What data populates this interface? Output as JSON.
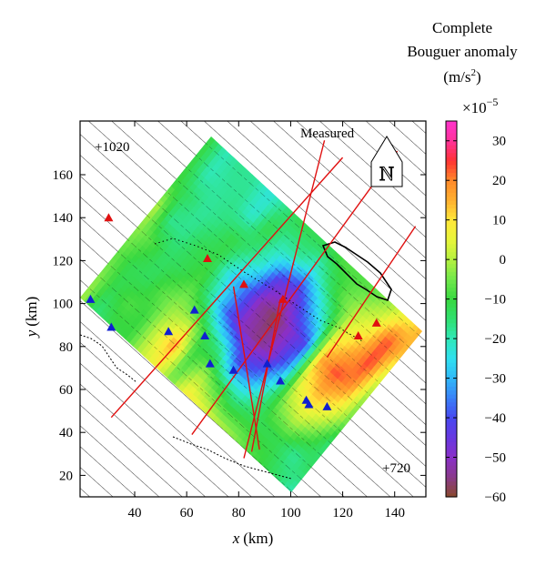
{
  "chart_data": {
    "type": "heatmap",
    "xlabel_var": "x",
    "xlabel_unit": "(km)",
    "ylabel_var": "y",
    "ylabel_unit": "(km)",
    "xticks": [
      40,
      60,
      80,
      100,
      120,
      140
    ],
    "yticks": [
      20,
      40,
      60,
      80,
      100,
      120,
      140,
      160
    ],
    "xlim": [
      19,
      152
    ],
    "ylim": [
      10,
      185
    ],
    "colorbar": {
      "title_line1": "Complete",
      "title_line2": "Bouguer anomaly",
      "title_unit": "(m/s",
      "title_unit_sup": "2",
      "title_unit_end": ")",
      "scale_base": "×10",
      "scale_exp": "−5",
      "range": [
        -60,
        35
      ],
      "ticks": [
        "30",
        "20",
        "10",
        "0",
        "−10",
        "−20",
        "−30",
        "−40",
        "−50",
        "−60"
      ],
      "tick_values": [
        30,
        20,
        10,
        0,
        -10,
        -20,
        -30,
        -40,
        -50,
        -60
      ],
      "stops": [
        {
          "v": 35,
          "c": "#ff33cc"
        },
        {
          "v": 30,
          "c": "#ff3399"
        },
        {
          "v": 25,
          "c": "#ff3333"
        },
        {
          "v": 20,
          "c": "#ff8a2a"
        },
        {
          "v": 15,
          "c": "#ffb030"
        },
        {
          "v": 10,
          "c": "#ffe83a"
        },
        {
          "v": 5,
          "c": "#e8f53a"
        },
        {
          "v": 0,
          "c": "#b4f040"
        },
        {
          "v": -5,
          "c": "#70e84a"
        },
        {
          "v": -10,
          "c": "#38d840"
        },
        {
          "v": -15,
          "c": "#30e070"
        },
        {
          "v": -20,
          "c": "#30e8b8"
        },
        {
          "v": -25,
          "c": "#30e0f0"
        },
        {
          "v": -30,
          "c": "#30b8f8"
        },
        {
          "v": -35,
          "c": "#3a80f8"
        },
        {
          "v": -40,
          "c": "#4848f0"
        },
        {
          "v": -45,
          "c": "#6838e0"
        },
        {
          "v": -50,
          "c": "#8a30c8"
        },
        {
          "v": -55,
          "c": "#8a3a8a"
        },
        {
          "v": -60,
          "c": "#8a4a2a"
        }
      ]
    },
    "grid_values": [
      [
        -20,
        -13,
        -16,
        -6,
        -4,
        3,
        13,
        15
      ],
      [
        -14,
        -18,
        -5,
        7,
        19,
        25,
        24,
        7
      ],
      [
        -10,
        -12,
        2,
        14,
        24,
        15,
        6,
        -2
      ],
      [
        -7,
        -12,
        -3,
        6,
        15,
        6,
        0,
        -7
      ],
      [
        -2,
        -13,
        -20,
        -33,
        -40,
        -19,
        -6,
        -8
      ],
      [
        1,
        -16,
        -35,
        -50,
        -49,
        -33,
        -15,
        -7
      ],
      [
        5,
        -10,
        -40,
        -55,
        -58,
        -48,
        -24,
        -11
      ],
      [
        9,
        -2,
        -20,
        -50,
        -52,
        -44,
        -18,
        -12
      ],
      [
        -5,
        -9,
        -12,
        -37,
        -35,
        -23,
        -19,
        -11
      ],
      [
        7,
        16,
        -2,
        -19,
        -25,
        -16,
        -11,
        -17
      ],
      [
        1,
        2,
        -2,
        -8,
        -11,
        -11,
        -22,
        -23
      ],
      [
        -10,
        -10,
        -7,
        -12,
        -12,
        -16,
        -17,
        -18
      ],
      [
        -11,
        -8,
        -13,
        -14,
        -17,
        -18,
        -18,
        -17
      ],
      [
        -16,
        -12,
        -12,
        -8,
        -17,
        -14,
        -20,
        -20
      ],
      [
        0,
        -3,
        -6,
        -3,
        1,
        -9,
        -10,
        -10
      ]
    ],
    "stations_red": [
      [
        30,
        140
      ],
      [
        68,
        121
      ],
      [
        82,
        109
      ],
      [
        97,
        102
      ],
      [
        126,
        85
      ],
      [
        133,
        91
      ]
    ],
    "stations_blue": [
      [
        23,
        102
      ],
      [
        31,
        89
      ],
      [
        53,
        87
      ],
      [
        63,
        97
      ],
      [
        67,
        85
      ],
      [
        69,
        72
      ],
      [
        78,
        69
      ],
      [
        91,
        72
      ],
      [
        96,
        64
      ],
      [
        106,
        55
      ],
      [
        107,
        53
      ],
      [
        114,
        52
      ]
    ],
    "red_lines": [
      [
        [
          31,
          47
        ],
        [
          120,
          168
        ]
      ],
      [
        [
          62,
          39
        ],
        [
          141,
          171
        ]
      ],
      [
        [
          82,
          28
        ],
        [
          113,
          176
        ]
      ],
      [
        [
          88,
          32
        ],
        [
          78,
          108
        ]
      ],
      [
        [
          85,
          31
        ],
        [
          96,
          102
        ]
      ],
      [
        [
          114,
          75
        ],
        [
          148,
          136
        ]
      ]
    ],
    "annotations": {
      "top_left": "+1020",
      "measured": "Measured",
      "bottom_right": "+720",
      "north": "N"
    }
  }
}
